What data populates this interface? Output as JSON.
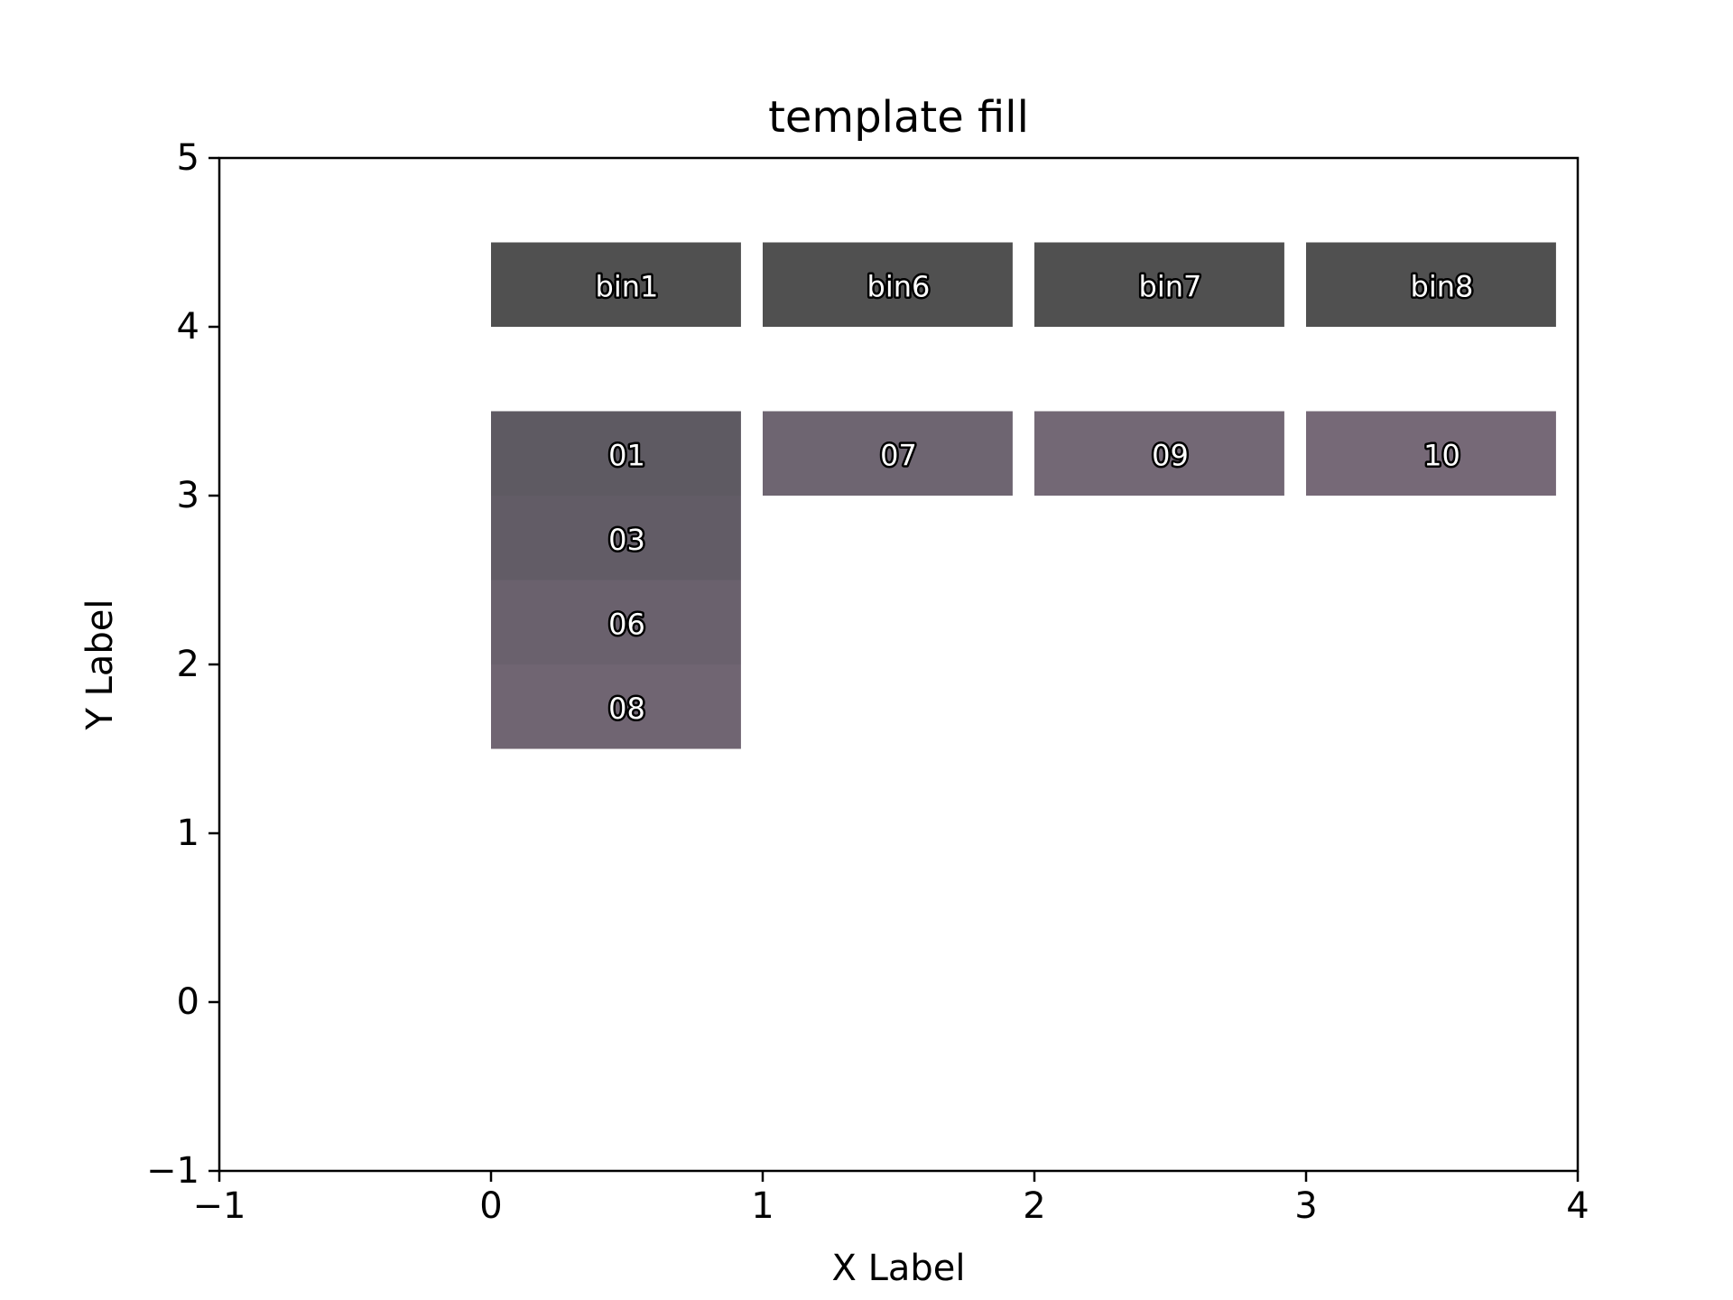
{
  "chart_data": {
    "type": "heatmap",
    "title": "template fill",
    "xlabel": "X Label",
    "ylabel": "Y Label",
    "xlim": [
      -1,
      4
    ],
    "ylim": [
      -1,
      5
    ],
    "xticks": [
      "−1",
      "0",
      "1",
      "2",
      "3",
      "4"
    ],
    "yticks": [
      "−1",
      "0",
      "1",
      "2",
      "3",
      "4",
      "5"
    ],
    "grid": false,
    "cells": [
      {
        "label": "bin1",
        "x": [
          0,
          0.92
        ],
        "y": [
          4.0,
          4.5
        ],
        "color": "#505050"
      },
      {
        "label": "bin6",
        "x": [
          1,
          1.92
        ],
        "y": [
          4.0,
          4.5
        ],
        "color": "#505050"
      },
      {
        "label": "bin7",
        "x": [
          2,
          2.92
        ],
        "y": [
          4.0,
          4.5
        ],
        "color": "#505050"
      },
      {
        "label": "bin8",
        "x": [
          3,
          3.92
        ],
        "y": [
          4.0,
          4.5
        ],
        "color": "#505050"
      },
      {
        "label": "01",
        "x": [
          0,
          0.92
        ],
        "y": [
          3.0,
          3.5
        ],
        "color": "#5e5a62"
      },
      {
        "label": "03",
        "x": [
          0,
          0.92
        ],
        "y": [
          2.5,
          3.0
        ],
        "color": "#625c66"
      },
      {
        "label": "06",
        "x": [
          0,
          0.92
        ],
        "y": [
          2.0,
          2.5
        ],
        "color": "#6a616d"
      },
      {
        "label": "08",
        "x": [
          0,
          0.92
        ],
        "y": [
          1.5,
          2.0
        ],
        "color": "#706572"
      },
      {
        "label": "07",
        "x": [
          1,
          1.92
        ],
        "y": [
          3.0,
          3.5
        ],
        "color": "#6e6571"
      },
      {
        "label": "09",
        "x": [
          2,
          2.92
        ],
        "y": [
          3.0,
          3.5
        ],
        "color": "#736875"
      },
      {
        "label": "10",
        "x": [
          3,
          3.92
        ],
        "y": [
          3.0,
          3.5
        ],
        "color": "#766977"
      }
    ]
  }
}
